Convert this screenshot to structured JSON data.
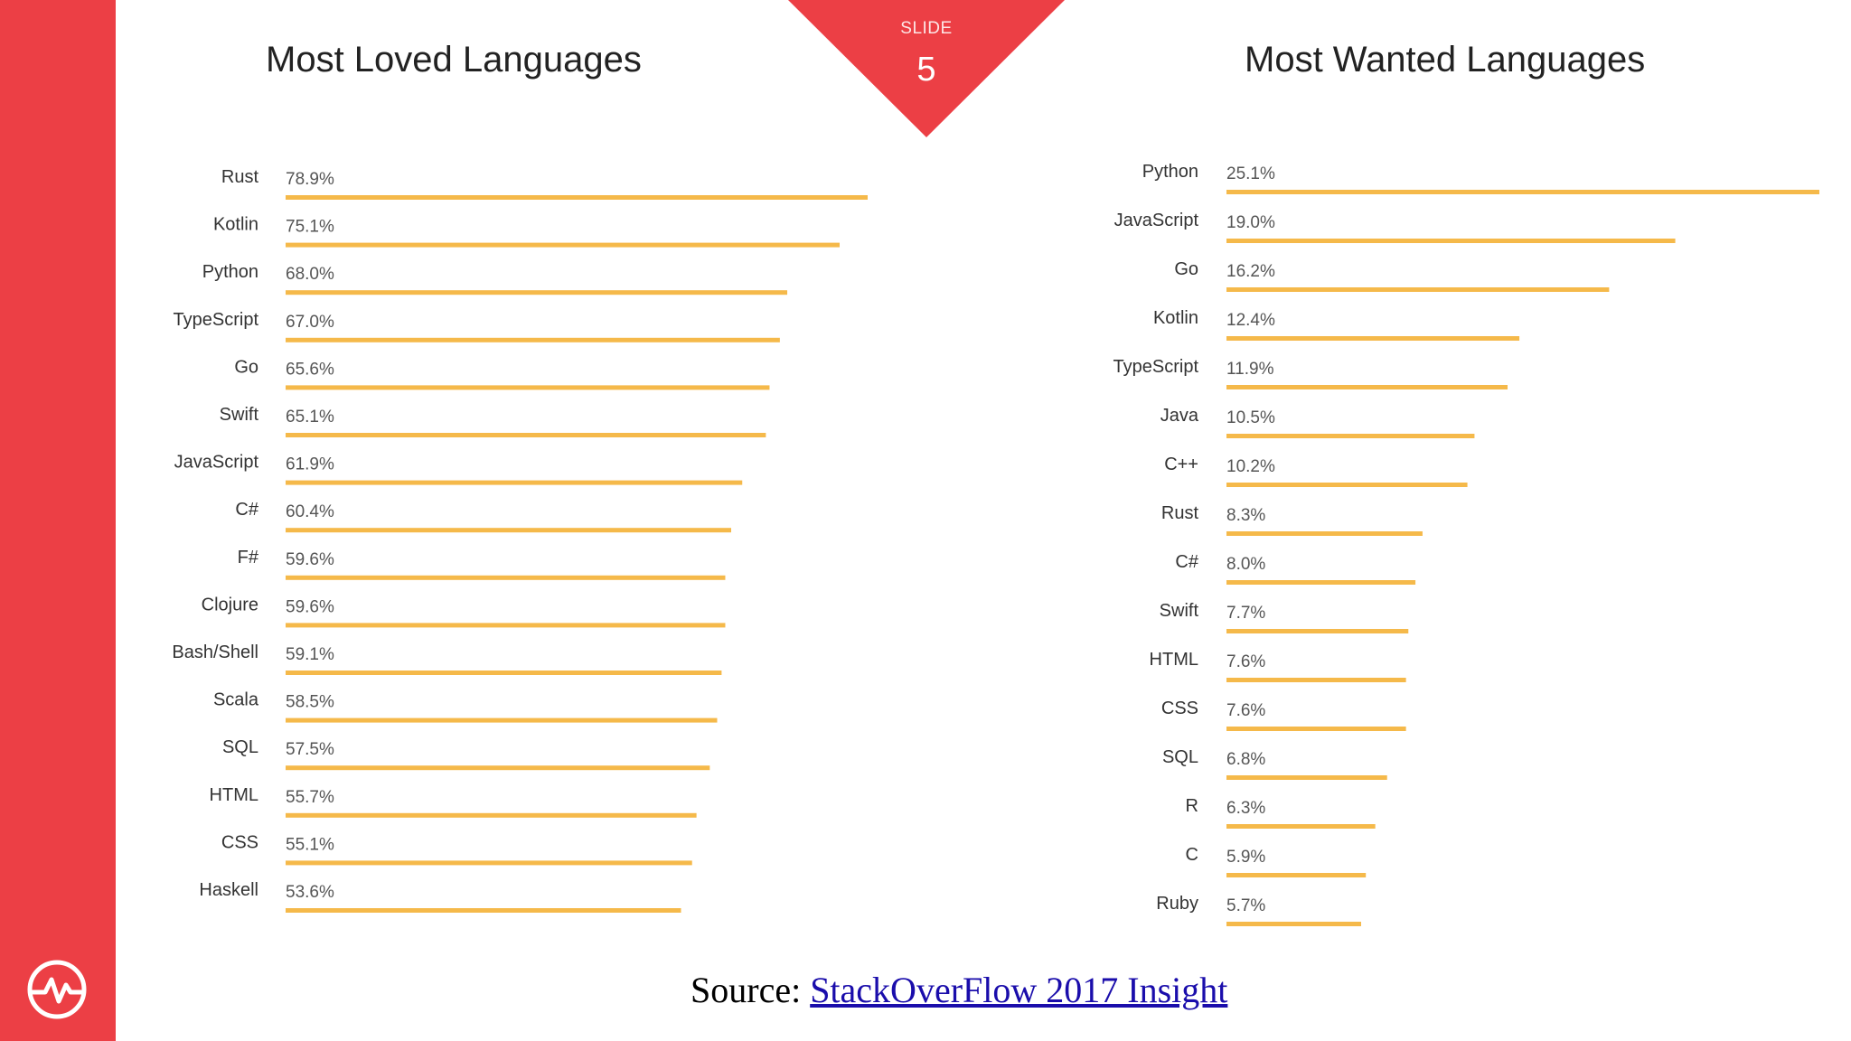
{
  "slide": {
    "word": "SLIDE",
    "number": "5"
  },
  "source": {
    "prefix": "Source:",
    "link_text": "StackOverFlow 2017 Insight"
  },
  "colors": {
    "sidebar": "#ec3f45",
    "bar": "#f5b94a",
    "marker": "#ec3f45"
  },
  "chart_data": [
    {
      "type": "bar",
      "orientation": "horizontal",
      "title": "Most Loved Languages",
      "categories": [
        "Rust",
        "Kotlin",
        "Python",
        "TypeScript",
        "Go",
        "Swift",
        "JavaScript",
        "C#",
        "F#",
        "Clojure",
        "Bash/Shell",
        "Scala",
        "SQL",
        "HTML",
        "CSS",
        "Haskell"
      ],
      "values": [
        78.9,
        75.1,
        68.0,
        67.0,
        65.6,
        65.1,
        61.9,
        60.4,
        59.6,
        59.6,
        59.1,
        58.5,
        57.5,
        55.7,
        55.1,
        53.6
      ],
      "value_labels": [
        "78.9%",
        "75.1%",
        "68.0%",
        "67.0%",
        "65.6%",
        "65.1%",
        "61.9%",
        "60.4%",
        "59.6%",
        "59.6%",
        "59.1%",
        "58.5%",
        "57.5%",
        "55.7%",
        "55.1%",
        "53.6%"
      ],
      "unit": "%"
    },
    {
      "type": "bar",
      "orientation": "horizontal",
      "title": "Most Wanted Languages",
      "categories": [
        "Python",
        "JavaScript",
        "Go",
        "Kotlin",
        "TypeScript",
        "Java",
        "C++",
        "Rust",
        "C#",
        "Swift",
        "HTML",
        "CSS",
        "SQL",
        "R",
        "C",
        "Ruby"
      ],
      "values": [
        25.1,
        19.0,
        16.2,
        12.4,
        11.9,
        10.5,
        10.2,
        8.3,
        8.0,
        7.7,
        7.6,
        7.6,
        6.8,
        6.3,
        5.9,
        5.7
      ],
      "value_labels": [
        "25.1%",
        "19.0%",
        "16.2%",
        "12.4%",
        "11.9%",
        "10.5%",
        "10.2%",
        "8.3%",
        "8.0%",
        "7.7%",
        "7.6%",
        "7.6%",
        "6.8%",
        "6.3%",
        "5.9%",
        "5.7%"
      ],
      "unit": "%"
    }
  ]
}
